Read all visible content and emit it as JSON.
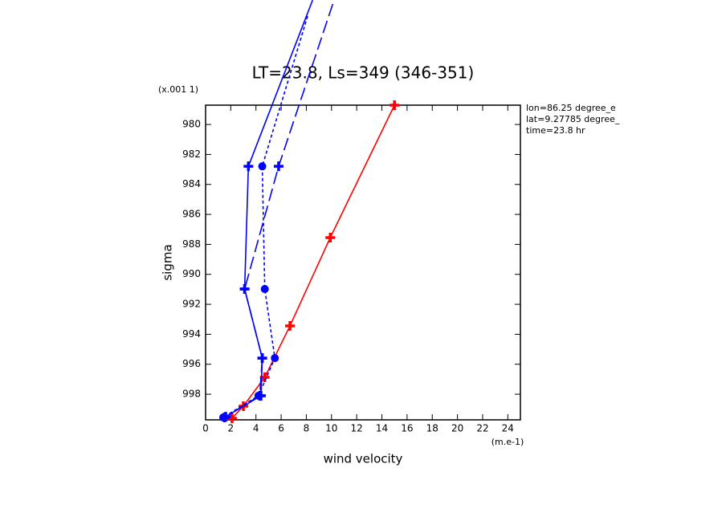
{
  "chart_data": {
    "type": "profile",
    "title": "LT=23.8, Ls=349 (346-351)",
    "xlabel": "wind velocity",
    "ylabel": "sigma",
    "xunit": "(m.e-1)",
    "yunit": "(x.001 1)",
    "annotations": [
      "lon=86.25 degree_e",
      "lat=9.27785 degree_",
      "time=23.8 hr"
    ],
    "xlim": [
      0,
      25
    ],
    "ylim": [
      999.71,
      978.71
    ],
    "xticks": [
      0,
      2,
      4,
      6,
      8,
      10,
      12,
      14,
      16,
      18,
      20,
      22,
      24
    ],
    "yticks": [
      980,
      982,
      984,
      986,
      988,
      990,
      992,
      994,
      996,
      998
    ],
    "series": [
      {
        "color": "#ff0000",
        "dash": "solid",
        "marker": "cross",
        "x": [
          15.0,
          9.9,
          6.7,
          4.7,
          3.0,
          2.1
        ],
        "y": [
          978.71,
          987.55,
          993.44,
          996.87,
          998.8,
          999.6
        ]
      },
      {
        "color": "#0000ff",
        "dash": "solid",
        "marker": "cross",
        "x": [
          8.5,
          3.4,
          3.1,
          4.5,
          4.4,
          1.6
        ],
        "y": [
          971.7,
          982.79,
          990.98,
          995.59,
          998.1,
          999.5
        ]
      },
      {
        "color": "#0000ff",
        "dash": "short",
        "marker": "circle",
        "x": [
          8.1,
          4.5,
          4.7,
          5.5,
          4.2,
          1.4
        ],
        "y": [
          972.77,
          982.79,
          990.98,
          995.59,
          998.1,
          999.55
        ]
      },
      {
        "color": "#0000ff",
        "dash": "long",
        "marker": "cross",
        "x": [
          10.1,
          5.8,
          3.1,
          4.5,
          4.3,
          1.5
        ],
        "y": [
          971.96,
          982.79,
          990.98,
          995.59,
          998.1,
          999.55
        ]
      }
    ]
  }
}
